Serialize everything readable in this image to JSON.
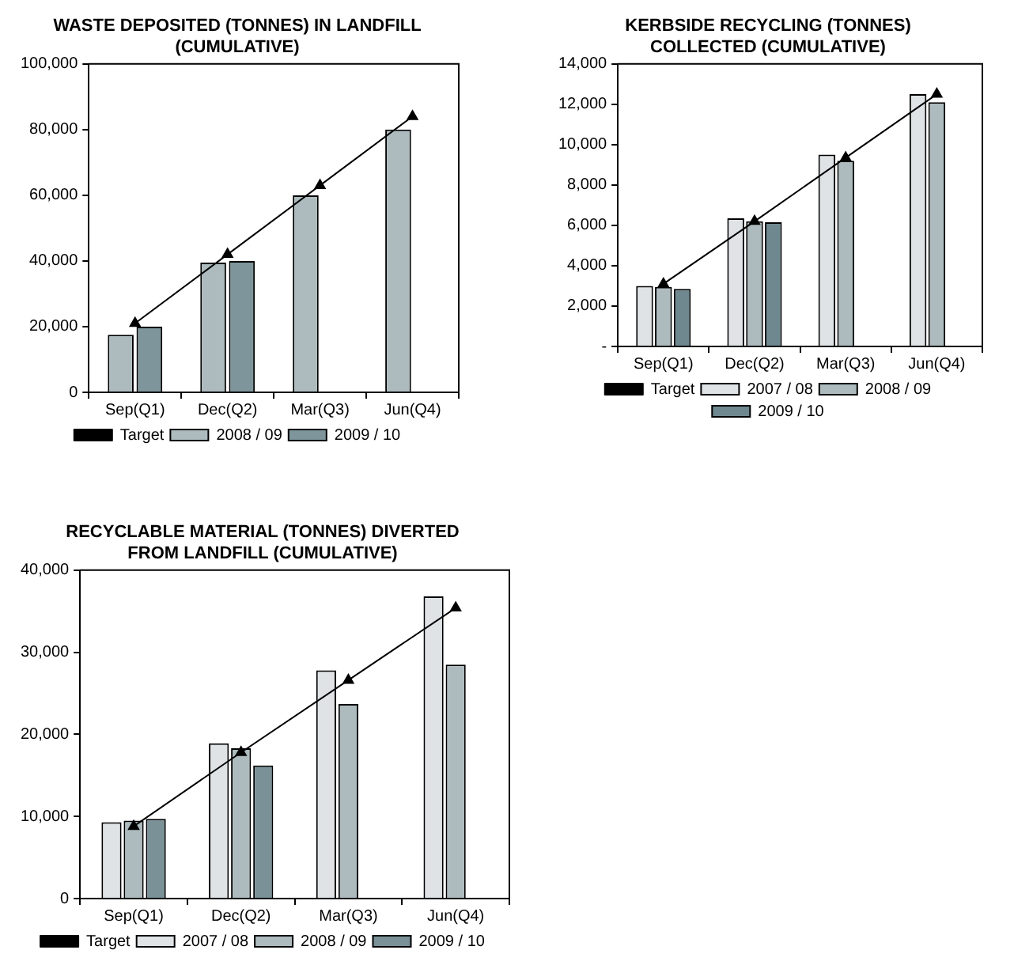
{
  "chart_data": [
    {
      "type": "bar",
      "title": "WASTE DEPOSITED (TONNES) IN LANDFILL (CUMULATIVE)",
      "categories": [
        "Sep(Q1)",
        "Dec(Q2)",
        "Mar(Q3)",
        "Jun(Q4)"
      ],
      "series": [
        {
          "name": "2008 / 09",
          "color": "#adbbbe",
          "values": [
            17500,
            39500,
            60000,
            80000
          ]
        },
        {
          "name": "2009 / 10",
          "color": "#7f959c",
          "values": [
            20000,
            40000,
            null,
            null
          ]
        },
        {
          "name": "Target",
          "type": "line",
          "color": "#000000",
          "marker": "triangle",
          "values": [
            21000,
            42000,
            63000,
            84000
          ]
        }
      ],
      "ylim": [
        0,
        100000
      ],
      "yticks": [
        {
          "value": 0,
          "label": "0"
        },
        {
          "value": 20000,
          "label": "20,000"
        },
        {
          "value": 40000,
          "label": "40,000"
        },
        {
          "value": 60000,
          "label": "60,000"
        },
        {
          "value": 80000,
          "label": "80,000"
        },
        {
          "value": 100000,
          "label": "100,000"
        }
      ],
      "legend": "bottom"
    },
    {
      "type": "bar",
      "title": "KERBSIDE RECYCLING (TONNES) COLLECTED (CUMULATIVE)",
      "categories": [
        "Sep(Q1)",
        "Dec(Q2)",
        "Mar(Q3)",
        "Jun(Q4)"
      ],
      "series": [
        {
          "name": "2007 / 08",
          "color": "#dfe3e5",
          "values": [
            3000,
            6350,
            9500,
            12500
          ]
        },
        {
          "name": "2008 / 09",
          "color": "#adbbbe",
          "values": [
            2950,
            6200,
            9200,
            12100
          ]
        },
        {
          "name": "2009 / 10",
          "color": "#6f8890",
          "values": [
            2850,
            6150,
            null,
            null
          ]
        },
        {
          "name": "Target",
          "type": "line",
          "color": "#000000",
          "marker": "triangle",
          "values": [
            3100,
            6200,
            9350,
            12500
          ]
        }
      ],
      "ylim": [
        0,
        14000
      ],
      "yticks": [
        {
          "value": 0,
          "label": "-"
        },
        {
          "value": 2000,
          "label": "2,000"
        },
        {
          "value": 4000,
          "label": "4,000"
        },
        {
          "value": 6000,
          "label": "6,000"
        },
        {
          "value": 8000,
          "label": "8,000"
        },
        {
          "value": 10000,
          "label": "10,000"
        },
        {
          "value": 12000,
          "label": "12,000"
        },
        {
          "value": 14000,
          "label": "14,000"
        }
      ],
      "legend": "bottom"
    },
    {
      "type": "bar",
      "title": "RECYCLABLE MATERIAL (TONNES) DIVERTED FROM LANDFILL (CUMULATIVE)",
      "categories": [
        "Sep(Q1)",
        "Dec(Q2)",
        "Mar(Q3)",
        "Jun(Q4)"
      ],
      "series": [
        {
          "name": "2007 / 08",
          "color": "#dfe3e5",
          "values": [
            9300,
            18900,
            27800,
            36800
          ]
        },
        {
          "name": "2008 / 09",
          "color": "#adbbbe",
          "values": [
            9500,
            18300,
            23700,
            28500
          ]
        },
        {
          "name": "2009 / 10",
          "color": "#7a9198",
          "values": [
            9700,
            16200,
            null,
            null
          ]
        },
        {
          "name": "Target",
          "type": "line",
          "color": "#000000",
          "marker": "triangle",
          "values": [
            8800,
            17800,
            26600,
            35400
          ]
        }
      ],
      "ylim": [
        0,
        40000
      ],
      "yticks": [
        {
          "value": 0,
          "label": "0"
        },
        {
          "value": 10000,
          "label": "10,000"
        },
        {
          "value": 20000,
          "label": "20,000"
        },
        {
          "value": 30000,
          "label": "30,000"
        },
        {
          "value": 40000,
          "label": "40,000"
        }
      ],
      "legend": "bottom"
    }
  ]
}
